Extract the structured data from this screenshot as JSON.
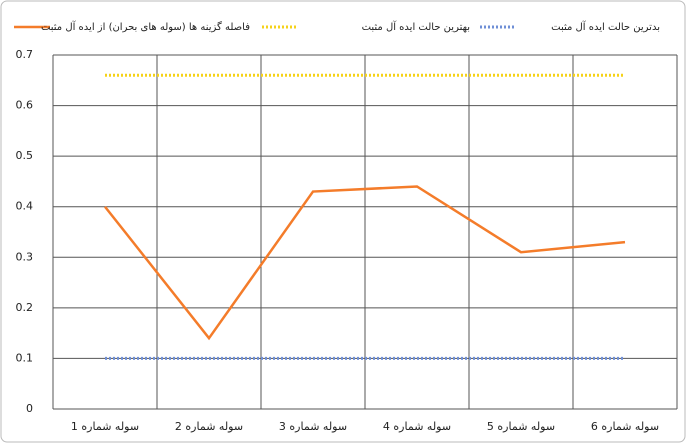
{
  "chart_data": {
    "type": "line",
    "categories": [
      "سوله شماره 1",
      "سوله شماره 2",
      "سوله شماره 3",
      "سوله شماره 4",
      "سوله شماره 5",
      "سوله شماره 6"
    ],
    "series": [
      {
        "name": "فاصله گزینه ها (سوله های بحران) از ایده آل مثبت",
        "color": "#f47c2a",
        "style": "solid",
        "values": [
          0.4,
          0.14,
          0.43,
          0.44,
          0.31,
          0.33
        ]
      },
      {
        "name": "بهترین حالت ایده آل مثبت",
        "color": "#f5d21a",
        "style": "dotted",
        "values": [
          0.66,
          0.66,
          0.66,
          0.66,
          0.66,
          0.66
        ]
      },
      {
        "name": "بدترین حالت ایده آل مثبت",
        "color": "#6f8fd6",
        "style": "dotted",
        "values": [
          0.1,
          0.1,
          0.1,
          0.1,
          0.1,
          0.1
        ]
      }
    ],
    "ylim": [
      0,
      0.7
    ],
    "yticks": [
      0,
      0.1,
      0.2,
      0.3,
      0.4,
      0.5,
      0.6,
      0.7
    ],
    "grid": true,
    "legend": "top"
  }
}
